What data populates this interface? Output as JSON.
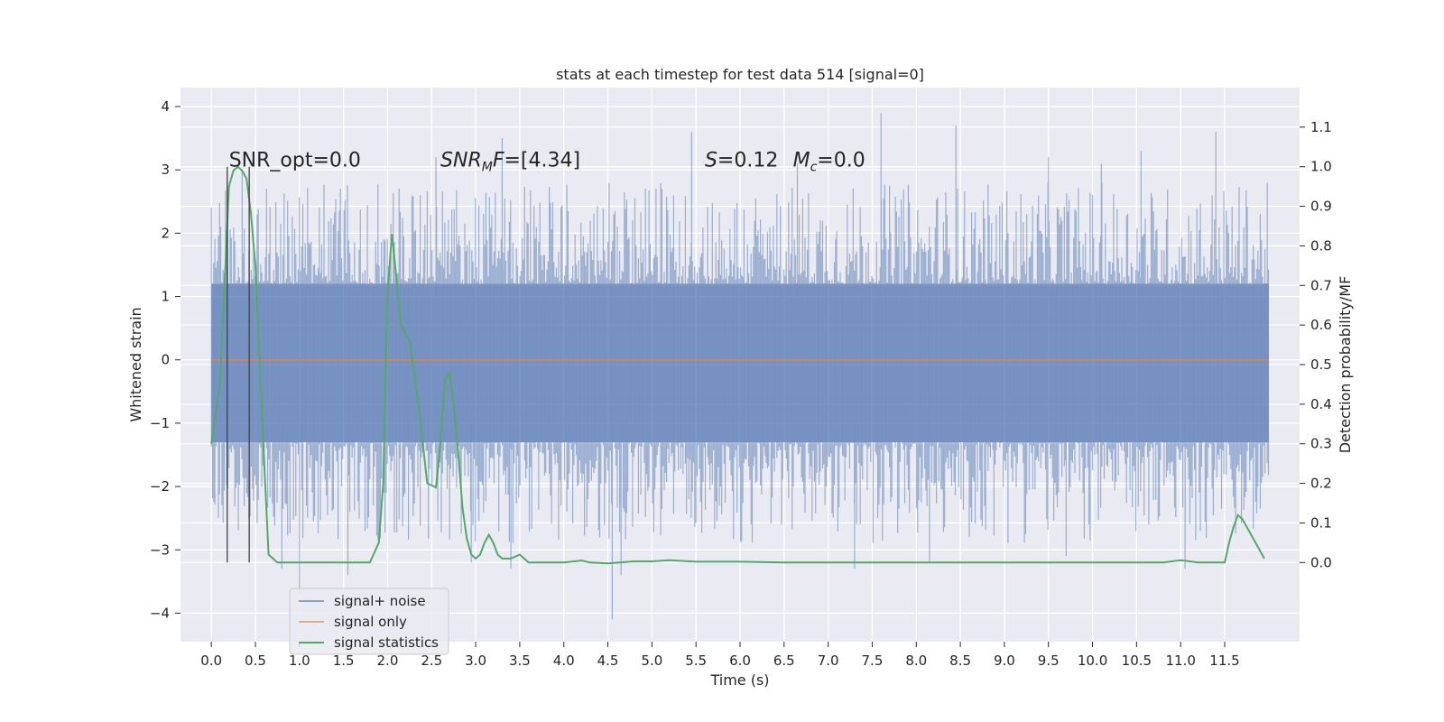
{
  "chart_data": {
    "type": "line",
    "title": "stats at each timestep for test data 514 [signal=0]",
    "xlabel": "Time (s)",
    "ylabel": "Whitened strain",
    "y2label": "Detection probability/MF",
    "xlim": [
      -0.35,
      12.35
    ],
    "ylim": [
      -4.45,
      4.3
    ],
    "y2lim": [
      -0.2,
      1.2
    ],
    "x_ticks": [
      "0.0",
      "0.5",
      "1.0",
      "1.5",
      "2.0",
      "2.5",
      "3.0",
      "3.5",
      "4.0",
      "4.5",
      "5.0",
      "5.5",
      "6.0",
      "6.5",
      "7.0",
      "7.5",
      "8.0",
      "8.5",
      "9.0",
      "9.5",
      "10.0",
      "10.5",
      "11.0",
      "11.5"
    ],
    "y_ticks": [
      -4,
      -3,
      -2,
      -1,
      0,
      1,
      2,
      3,
      4
    ],
    "y2_ticks": [
      "0.0",
      "0.1",
      "0.2",
      "0.3",
      "0.4",
      "0.5",
      "0.6",
      "0.7",
      "0.8",
      "0.9",
      "1.0",
      "1.1"
    ],
    "grid": true,
    "legend_position": "lower-left",
    "annotations": [
      {
        "parts": [
          {
            "t": "SNR_opt=0.0",
            "i": false
          }
        ]
      },
      {
        "parts": [
          {
            "t": "SNR",
            "i": true
          },
          {
            "t": "M",
            "i": true,
            "sub": true
          },
          {
            "t": "F",
            "i": true
          },
          {
            "t": "=[4.34]",
            "i": false
          }
        ]
      },
      {
        "parts": [
          {
            "t": "S",
            "i": true
          },
          {
            "t": "=0.12",
            "i": false
          }
        ]
      },
      {
        "parts": [
          {
            "t": "M",
            "i": true
          },
          {
            "t": "c",
            "i": true,
            "sub": true
          },
          {
            "t": "=0.0",
            "i": false
          }
        ]
      }
    ],
    "vlines_x": [
      0.18,
      0.43
    ],
    "series": [
      {
        "name": "signal+ noise",
        "axis": "left",
        "color": "#4c72b0",
        "render": "noise_band",
        "x_range": [
          0.0,
          12.0
        ],
        "note_values": "dense whitened strain trace, core band approx -1.3 to 1.3, peaks up to about 3.9 and down to about -4.1",
        "peaks_high": [
          [
            0.0,
            2.4
          ],
          [
            0.35,
            3.0
          ],
          [
            2.55,
            3.2
          ],
          [
            3.3,
            3.5
          ],
          [
            5.45,
            3.6
          ],
          [
            6.65,
            3.1
          ],
          [
            7.6,
            3.9
          ],
          [
            8.45,
            3.7
          ],
          [
            9.5,
            3.2
          ],
          [
            10.1,
            3.1
          ],
          [
            10.55,
            3.3
          ],
          [
            11.4,
            3.6
          ]
        ],
        "peaks_low": [
          [
            0.8,
            -3.3
          ],
          [
            1.0,
            -3.7
          ],
          [
            1.55,
            -3.4
          ],
          [
            2.95,
            -3.2
          ],
          [
            3.4,
            -3.3
          ],
          [
            4.55,
            -4.1
          ],
          [
            4.65,
            -3.4
          ],
          [
            7.3,
            -3.3
          ],
          [
            8.15,
            -3.2
          ],
          [
            9.7,
            -3.1
          ],
          [
            11.05,
            -3.3
          ]
        ]
      },
      {
        "name": "signal only",
        "axis": "left",
        "color": "#dd8452",
        "x": [
          0.0,
          12.0
        ],
        "y": [
          0.0,
          0.0
        ]
      },
      {
        "name": "signal statistics",
        "axis": "right",
        "color": "#55a868",
        "x": [
          0.0,
          0.05,
          0.1,
          0.15,
          0.2,
          0.25,
          0.3,
          0.35,
          0.4,
          0.45,
          0.5,
          0.55,
          0.6,
          0.65,
          0.75,
          1.0,
          1.5,
          1.8,
          1.9,
          1.95,
          2.0,
          2.05,
          2.1,
          2.15,
          2.2,
          2.25,
          2.35,
          2.45,
          2.55,
          2.6,
          2.65,
          2.7,
          2.75,
          2.8,
          2.85,
          2.9,
          2.95,
          3.0,
          3.05,
          3.1,
          3.15,
          3.2,
          3.25,
          3.3,
          3.4,
          3.5,
          3.55,
          3.6,
          3.7,
          3.8,
          4.0,
          4.2,
          4.3,
          4.5,
          4.8,
          5.0,
          5.2,
          5.5,
          6.0,
          6.5,
          7.0,
          8.0,
          9.0,
          10.0,
          10.8,
          11.0,
          11.2,
          11.5,
          11.55,
          11.6,
          11.65,
          11.7,
          11.75,
          11.8,
          11.9,
          11.95
        ],
        "y": [
          0.3,
          0.38,
          0.45,
          0.7,
          0.95,
          0.99,
          1.0,
          0.99,
          0.97,
          0.88,
          0.75,
          0.5,
          0.25,
          0.02,
          0.0,
          0.0,
          0.0,
          0.0,
          0.05,
          0.2,
          0.68,
          0.83,
          0.72,
          0.6,
          0.58,
          0.56,
          0.4,
          0.2,
          0.19,
          0.3,
          0.46,
          0.48,
          0.4,
          0.28,
          0.14,
          0.06,
          0.02,
          0.01,
          0.02,
          0.05,
          0.07,
          0.05,
          0.02,
          0.01,
          0.01,
          0.02,
          0.01,
          0.0,
          0.0,
          0.0,
          0.0,
          0.005,
          0.0,
          -0.002,
          0.003,
          0.003,
          0.006,
          0.002,
          0.002,
          0.0,
          0.0,
          0.0,
          0.0,
          0.0,
          0.0,
          0.006,
          0.0,
          0.0,
          0.05,
          0.09,
          0.12,
          0.11,
          0.09,
          0.07,
          0.03,
          0.01
        ]
      }
    ]
  }
}
